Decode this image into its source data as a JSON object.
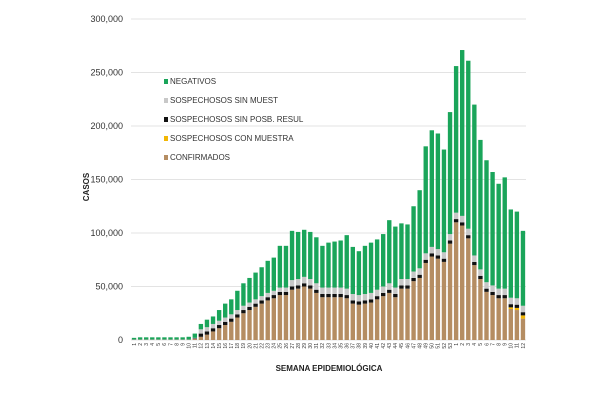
{
  "chart_data": {
    "type": "bar",
    "stacked": true,
    "title": "",
    "xlabel": "SEMANA EPIDEMIOLÓGICA",
    "ylabel": "CASOS",
    "ylim": [
      0,
      300000
    ],
    "yticks": [
      "0",
      "50,000",
      "100,000",
      "150,000",
      "200,000",
      "250,000",
      "300,000"
    ],
    "grid": true,
    "legend_position": "top-left",
    "categories": [
      "1",
      "2",
      "3",
      "4",
      "5",
      "6",
      "7",
      "8",
      "9",
      "10",
      "11",
      "12",
      "13",
      "14",
      "15",
      "16",
      "17",
      "18",
      "19",
      "20",
      "21",
      "22",
      "23",
      "24",
      "25",
      "26",
      "27",
      "28",
      "29",
      "30",
      "31",
      "32",
      "33",
      "34",
      "35",
      "36",
      "37",
      "38",
      "39",
      "40",
      "41",
      "42",
      "43",
      "44",
      "45",
      "46",
      "47",
      "48",
      "49",
      "50",
      "51",
      "52",
      "53",
      "1",
      "2",
      "3",
      "4",
      "5",
      "6",
      "7",
      "8",
      "9",
      "10",
      "11",
      "12"
    ],
    "series": [
      {
        "name": "CONFIRMADOS",
        "color": "#b58d62",
        "values": [
          200,
          200,
          200,
          200,
          200,
          200,
          200,
          200,
          200,
          200,
          1000,
          3000,
          5000,
          8000,
          11000,
          14000,
          17000,
          21000,
          25000,
          28000,
          31000,
          34000,
          37000,
          39000,
          42000,
          42000,
          47000,
          48000,
          50000,
          48000,
          44000,
          40000,
          40000,
          40000,
          40000,
          39000,
          34000,
          33000,
          34000,
          35000,
          38000,
          41000,
          44000,
          40000,
          48000,
          48000,
          55000,
          58000,
          72000,
          78000,
          76000,
          73000,
          90000,
          110000,
          107000,
          95000,
          70000,
          57000,
          45000,
          42000,
          39000,
          39000,
          29000,
          28000,
          20000
        ]
      },
      {
        "name": "SOSPECHOSOS CON MUESTRA",
        "color": "#f2b705",
        "values": [
          0,
          0,
          0,
          0,
          0,
          0,
          0,
          0,
          0,
          0,
          0,
          0,
          0,
          0,
          0,
          0,
          0,
          0,
          0,
          0,
          0,
          0,
          0,
          0,
          0,
          0,
          0,
          0,
          0,
          0,
          0,
          0,
          0,
          0,
          0,
          0,
          0,
          0,
          0,
          0,
          0,
          0,
          0,
          0,
          0,
          0,
          0,
          0,
          0,
          0,
          0,
          0,
          0,
          0,
          0,
          0,
          0,
          0,
          0,
          0,
          0,
          0,
          1500,
          2000,
          3000
        ]
      },
      {
        "name": "SOSPECHOSOS SIN POSB. RESUL",
        "color": "#111111",
        "values": [
          100,
          100,
          100,
          100,
          100,
          100,
          100,
          100,
          100,
          100,
          500,
          3000,
          3000,
          3000,
          3000,
          3000,
          3000,
          3000,
          3000,
          3000,
          3000,
          3000,
          3000,
          3000,
          3000,
          3000,
          3000,
          3000,
          3000,
          3000,
          3000,
          3000,
          3000,
          3000,
          3000,
          3000,
          3000,
          3000,
          3000,
          3000,
          3000,
          3000,
          3000,
          3000,
          3000,
          3000,
          3000,
          3000,
          3000,
          3000,
          3000,
          3000,
          3000,
          3000,
          3000,
          3000,
          3000,
          3000,
          3000,
          3000,
          3000,
          3000,
          3000,
          3000,
          3000
        ]
      },
      {
        "name": "SOSPECHOSOS SIN MUEST",
        "color": "#c8c8c8",
        "values": [
          200,
          200,
          200,
          200,
          200,
          200,
          200,
          200,
          200,
          200,
          500,
          4000,
          4000,
          4000,
          4000,
          4000,
          4000,
          4000,
          4000,
          4000,
          4000,
          4000,
          4000,
          4000,
          4000,
          4000,
          6000,
          6000,
          6000,
          6000,
          6000,
          6000,
          6000,
          6000,
          6000,
          6000,
          6000,
          6000,
          6000,
          6000,
          6000,
          6000,
          6000,
          6000,
          6000,
          6000,
          6000,
          6000,
          6000,
          6000,
          6000,
          6000,
          6000,
          6000,
          6000,
          6000,
          6000,
          6000,
          6000,
          6000,
          6000,
          6000,
          6000,
          6000,
          6000
        ]
      },
      {
        "name": "NEGATIVOS",
        "color": "#1aa55a",
        "values": [
          1500,
          2000,
          2000,
          2000,
          2000,
          2000,
          2000,
          2000,
          2000,
          2500,
          4000,
          5000,
          7000,
          7000,
          10000,
          13000,
          14000,
          18000,
          21000,
          23000,
          25000,
          27000,
          30000,
          31000,
          39000,
          39000,
          46000,
          44000,
          44000,
          44000,
          43000,
          39000,
          42000,
          43000,
          44000,
          50000,
          44000,
          41000,
          45000,
          47000,
          47000,
          49000,
          59000,
          57000,
          52000,
          51000,
          61000,
          73000,
          100000,
          109000,
          108000,
          96000,
          114000,
          137000,
          155000,
          157000,
          141000,
          121000,
          114000,
          106000,
          98000,
          104000,
          82500,
          81000,
          70000
        ]
      }
    ],
    "legend_order": [
      "NEGATIVOS",
      "SOSPECHOSOS SIN MUEST",
      "SOSPECHOSOS SIN POSB. RESUL",
      "SOSPECHOSOS CON MUESTRA",
      "CONFIRMADOS"
    ]
  }
}
